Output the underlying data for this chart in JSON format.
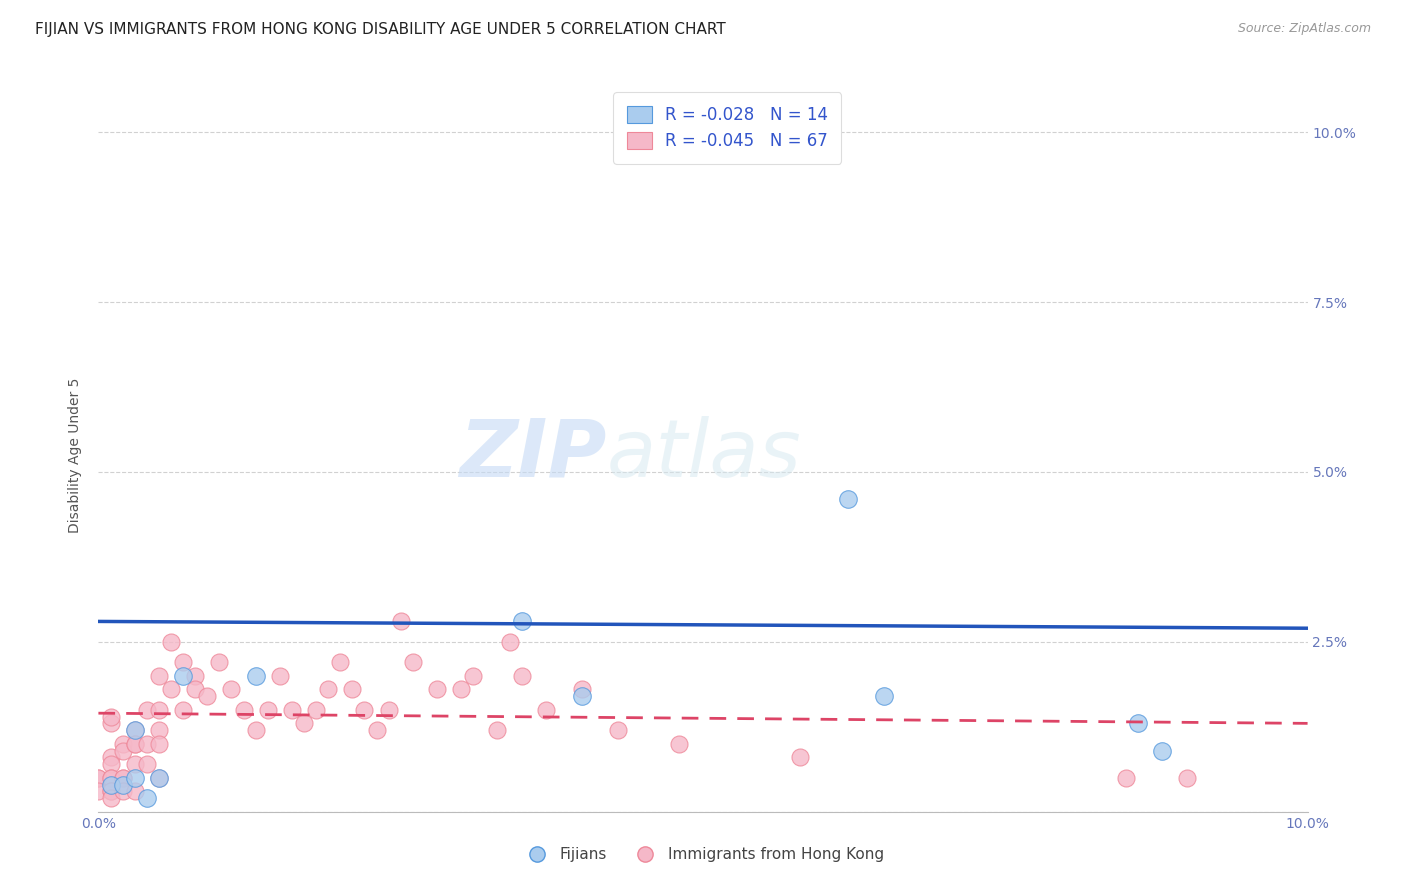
{
  "title": "FIJIAN VS IMMIGRANTS FROM HONG KONG DISABILITY AGE UNDER 5 CORRELATION CHART",
  "source": "Source: ZipAtlas.com",
  "ylabel": "Disability Age Under 5",
  "xlim": [
    0.0,
    0.1
  ],
  "ylim": [
    0.0,
    0.105
  ],
  "xtick_vals": [
    0.0,
    0.02,
    0.04,
    0.06,
    0.08,
    0.1
  ],
  "xtick_labels": [
    "0.0%",
    "",
    "",
    "",
    "",
    "10.0%"
  ],
  "ytick_vals": [
    0.0,
    0.025,
    0.05,
    0.075,
    0.1
  ],
  "ytick_labels_right": [
    "",
    "2.5%",
    "5.0%",
    "7.5%",
    "10.0%"
  ],
  "fijian_color": "#aaccee",
  "hk_color": "#f5b8c8",
  "fijian_edge_color": "#5599dd",
  "hk_edge_color": "#ee8899",
  "fijian_line_color": "#2255bb",
  "hk_line_color": "#dd4466",
  "fijian_R": "-0.028",
  "fijian_N": "14",
  "hk_R": "-0.045",
  "hk_N": "67",
  "legend_label_1": "Fijians",
  "legend_label_2": "Immigrants from Hong Kong",
  "watermark_zip": "ZIP",
  "watermark_atlas": "atlas",
  "grid_color": "#cccccc",
  "background_color": "#ffffff",
  "title_fontsize": 11,
  "axis_label_fontsize": 10,
  "tick_fontsize": 10,
  "legend_fontsize": 11,
  "fijian_x": [
    0.001,
    0.002,
    0.003,
    0.003,
    0.004,
    0.005,
    0.007,
    0.013,
    0.035,
    0.04,
    0.062,
    0.086,
    0.088,
    0.065
  ],
  "fijian_y": [
    0.004,
    0.004,
    0.005,
    0.012,
    0.002,
    0.005,
    0.02,
    0.02,
    0.028,
    0.017,
    0.046,
    0.013,
    0.009,
    0.017
  ],
  "hk_x": [
    0.0,
    0.0,
    0.0,
    0.001,
    0.001,
    0.001,
    0.001,
    0.001,
    0.001,
    0.001,
    0.001,
    0.001,
    0.002,
    0.002,
    0.002,
    0.002,
    0.002,
    0.003,
    0.003,
    0.003,
    0.003,
    0.003,
    0.004,
    0.004,
    0.004,
    0.005,
    0.005,
    0.005,
    0.005,
    0.005,
    0.006,
    0.006,
    0.007,
    0.007,
    0.008,
    0.008,
    0.009,
    0.01,
    0.011,
    0.012,
    0.013,
    0.014,
    0.015,
    0.016,
    0.017,
    0.018,
    0.019,
    0.02,
    0.021,
    0.022,
    0.023,
    0.024,
    0.025,
    0.026,
    0.028,
    0.03,
    0.031,
    0.033,
    0.034,
    0.035,
    0.037,
    0.04,
    0.043,
    0.048,
    0.058,
    0.085,
    0.09
  ],
  "hk_y": [
    0.005,
    0.005,
    0.003,
    0.008,
    0.007,
    0.005,
    0.005,
    0.003,
    0.003,
    0.002,
    0.013,
    0.014,
    0.01,
    0.009,
    0.005,
    0.005,
    0.003,
    0.012,
    0.01,
    0.01,
    0.007,
    0.003,
    0.015,
    0.01,
    0.007,
    0.02,
    0.015,
    0.012,
    0.01,
    0.005,
    0.025,
    0.018,
    0.022,
    0.015,
    0.02,
    0.018,
    0.017,
    0.022,
    0.018,
    0.015,
    0.012,
    0.015,
    0.02,
    0.015,
    0.013,
    0.015,
    0.018,
    0.022,
    0.018,
    0.015,
    0.012,
    0.015,
    0.028,
    0.022,
    0.018,
    0.018,
    0.02,
    0.012,
    0.025,
    0.02,
    0.015,
    0.018,
    0.012,
    0.01,
    0.008,
    0.005,
    0.005
  ]
}
